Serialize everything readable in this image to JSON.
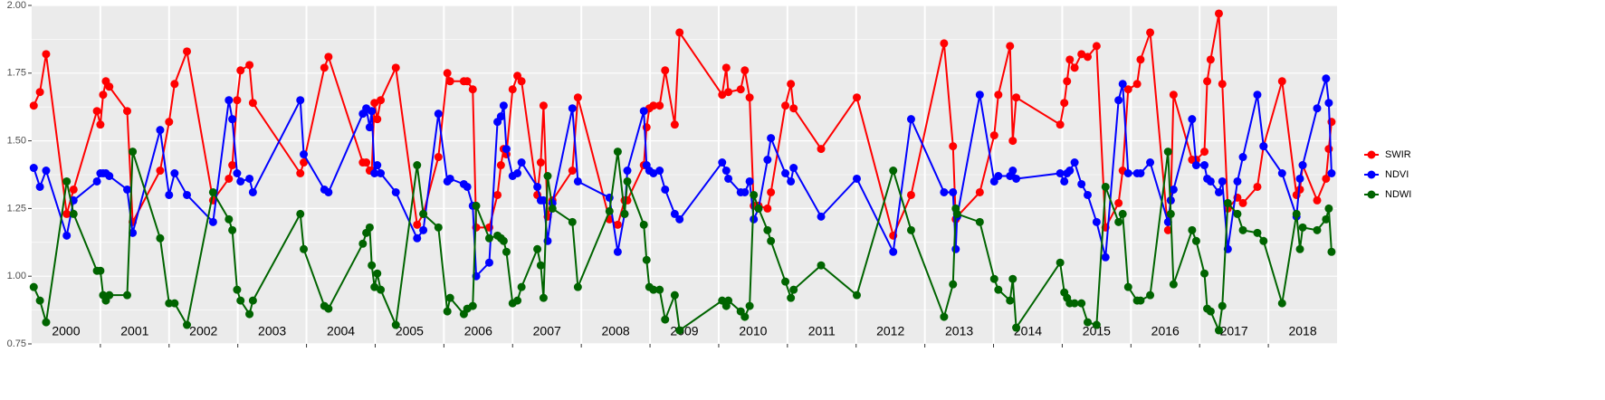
{
  "chart_data": {
    "type": "line",
    "x": [
      2000.03,
      2000.12,
      2000.21,
      2000.51,
      2000.61,
      2000.95,
      2001.0,
      2001.04,
      2001.08,
      2001.13,
      2001.39,
      2001.47,
      2001.87,
      2002.0,
      2002.08,
      2002.26,
      2002.64,
      2002.87,
      2002.92,
      2002.99,
      2003.04,
      2003.17,
      2003.22,
      2003.91,
      2003.96,
      2004.26,
      2004.32,
      2004.82,
      2004.87,
      2004.92,
      2004.95,
      2004.99,
      2005.03,
      2005.08,
      2005.3,
      2005.61,
      2005.7,
      2005.92,
      2006.05,
      2006.09,
      2006.29,
      2006.34,
      2006.42,
      2006.47,
      2006.66,
      2006.78,
      2006.83,
      2006.87,
      2006.91,
      2007.0,
      2007.07,
      2007.13,
      2007.36,
      2007.41,
      2007.45,
      2007.51,
      2007.58,
      2007.87,
      2007.95,
      2008.41,
      2008.53,
      2008.63,
      2008.67,
      2008.91,
      2008.95,
      2008.99,
      2009.05,
      2009.14,
      2009.22,
      2009.36,
      2009.43,
      2010.05,
      2010.11,
      2010.14,
      2010.32,
      2010.38,
      2010.45,
      2010.51,
      2010.58,
      2010.71,
      2010.76,
      2010.97,
      2011.05,
      2011.09,
      2011.49,
      2012.01,
      2012.54,
      2012.8,
      2013.28,
      2013.41,
      2013.45,
      2013.47,
      2013.8,
      2014.01,
      2014.07,
      2014.24,
      2014.28,
      2014.33,
      2014.97,
      2015.03,
      2015.07,
      2015.11,
      2015.18,
      2015.28,
      2015.37,
      2015.5,
      2015.63,
      2015.82,
      2015.88,
      2015.96,
      2016.09,
      2016.14,
      2016.28,
      2016.54,
      2016.58,
      2016.62,
      2016.89,
      2016.95,
      2017.07,
      2017.11,
      2017.16,
      2017.28,
      2017.33,
      2017.41,
      2017.55,
      2017.63,
      2017.84,
      2017.93,
      2018.2,
      2018.41,
      2018.46,
      2018.5,
      2018.71,
      2018.84,
      2018.88,
      2018.92
    ],
    "series": [
      {
        "name": "SWIR",
        "color": "#ff0000",
        "values": [
          1.63,
          1.68,
          1.82,
          1.23,
          1.32,
          1.61,
          1.56,
          1.67,
          1.72,
          1.7,
          1.61,
          1.2,
          1.39,
          1.57,
          1.71,
          1.83,
          1.28,
          1.36,
          1.41,
          1.65,
          1.76,
          1.78,
          1.64,
          1.38,
          1.42,
          1.77,
          1.81,
          1.42,
          1.42,
          1.39,
          1.39,
          1.64,
          1.58,
          1.65,
          1.77,
          1.19,
          1.23,
          1.44,
          1.75,
          1.72,
          1.72,
          1.72,
          1.69,
          1.18,
          1.18,
          1.3,
          1.41,
          1.47,
          1.45,
          1.69,
          1.74,
          1.72,
          1.3,
          1.42,
          1.63,
          1.22,
          1.28,
          1.39,
          1.66,
          1.21,
          1.19,
          1.28,
          1.28,
          1.41,
          1.55,
          1.62,
          1.63,
          1.63,
          1.76,
          1.56,
          1.9,
          1.67,
          1.77,
          1.68,
          1.69,
          1.76,
          1.66,
          1.26,
          1.26,
          1.25,
          1.31,
          1.63,
          1.71,
          1.62,
          1.47,
          1.66,
          1.15,
          1.3,
          1.86,
          1.48,
          1.21,
          1.22,
          1.31,
          1.52,
          1.67,
          1.85,
          1.5,
          1.66,
          1.56,
          1.64,
          1.72,
          1.8,
          1.77,
          1.82,
          1.81,
          1.85,
          1.18,
          1.27,
          1.39,
          1.69,
          1.71,
          1.8,
          1.9,
          1.17,
          1.28,
          1.67,
          1.43,
          1.43,
          1.46,
          1.72,
          1.8,
          1.97,
          1.71,
          1.25,
          1.29,
          1.27,
          1.33,
          1.48,
          1.72,
          1.3,
          1.32,
          1.41,
          1.28,
          1.36,
          1.47,
          1.57
        ]
      },
      {
        "name": "NDVI",
        "color": "#0000ff",
        "values": [
          1.4,
          1.33,
          1.39,
          1.15,
          1.28,
          1.35,
          1.38,
          1.38,
          1.38,
          1.37,
          1.32,
          1.16,
          1.54,
          1.3,
          1.38,
          1.3,
          1.2,
          1.65,
          1.58,
          1.38,
          1.35,
          1.36,
          1.31,
          1.65,
          1.45,
          1.32,
          1.31,
          1.6,
          1.62,
          1.55,
          1.61,
          1.38,
          1.41,
          1.38,
          1.31,
          1.14,
          1.17,
          1.6,
          1.35,
          1.36,
          1.34,
          1.33,
          1.26,
          1.0,
          1.05,
          1.57,
          1.59,
          1.63,
          1.47,
          1.37,
          1.38,
          1.42,
          1.33,
          1.28,
          1.28,
          1.13,
          1.27,
          1.62,
          1.35,
          1.29,
          1.09,
          1.23,
          1.39,
          1.61,
          1.41,
          1.39,
          1.38,
          1.39,
          1.32,
          1.23,
          1.21,
          1.42,
          1.39,
          1.36,
          1.31,
          1.31,
          1.35,
          1.21,
          1.25,
          1.43,
          1.51,
          1.38,
          1.35,
          1.4,
          1.22,
          1.36,
          1.09,
          1.58,
          1.31,
          1.31,
          1.1,
          1.22,
          1.67,
          1.35,
          1.37,
          1.37,
          1.39,
          1.36,
          1.38,
          1.35,
          1.38,
          1.39,
          1.42,
          1.34,
          1.3,
          1.2,
          1.07,
          1.65,
          1.71,
          1.38,
          1.38,
          1.38,
          1.42,
          1.2,
          1.28,
          1.32,
          1.58,
          1.41,
          1.41,
          1.36,
          1.35,
          1.31,
          1.35,
          1.1,
          1.35,
          1.44,
          1.67,
          1.48,
          1.38,
          1.22,
          1.36,
          1.41,
          1.62,
          1.73,
          1.64,
          1.38
        ]
      },
      {
        "name": "NDWI",
        "color": "#006400",
        "values": [
          0.96,
          0.91,
          0.83,
          1.35,
          1.23,
          1.02,
          1.02,
          0.93,
          0.91,
          0.93,
          0.93,
          1.46,
          1.14,
          0.9,
          0.9,
          0.82,
          1.31,
          1.21,
          1.17,
          0.95,
          0.91,
          0.86,
          0.91,
          1.23,
          1.1,
          0.89,
          0.88,
          1.12,
          1.16,
          1.18,
          1.04,
          0.96,
          1.01,
          0.95,
          0.82,
          1.41,
          1.23,
          1.18,
          0.87,
          0.92,
          0.86,
          0.88,
          0.89,
          1.26,
          1.14,
          1.15,
          1.14,
          1.13,
          1.09,
          0.9,
          0.91,
          0.96,
          1.1,
          1.04,
          0.92,
          1.37,
          1.25,
          1.2,
          0.96,
          1.24,
          1.46,
          1.23,
          1.35,
          1.19,
          1.06,
          0.96,
          0.95,
          0.95,
          0.84,
          0.93,
          0.8,
          0.91,
          0.89,
          0.91,
          0.87,
          0.85,
          0.89,
          1.3,
          1.25,
          1.17,
          1.13,
          0.98,
          0.92,
          0.95,
          1.04,
          0.93,
          1.39,
          1.17,
          0.85,
          0.97,
          1.25,
          1.23,
          1.2,
          0.99,
          0.95,
          0.91,
          0.99,
          0.81,
          1.05,
          0.94,
          0.92,
          0.9,
          0.9,
          0.9,
          0.83,
          0.82,
          1.33,
          1.2,
          1.23,
          0.96,
          0.91,
          0.91,
          0.93,
          1.46,
          1.23,
          0.97,
          1.17,
          1.13,
          1.01,
          0.88,
          0.87,
          0.8,
          0.89,
          1.27,
          1.23,
          1.17,
          1.16,
          1.13,
          0.9,
          1.23,
          1.1,
          1.18,
          1.17,
          1.21,
          1.25,
          1.09
        ]
      }
    ],
    "xlim": [
      2000,
      2019
    ],
    "xticks": [
      {
        "value": 2000.5,
        "label": "2000"
      },
      {
        "value": 2001.5,
        "label": "2001"
      },
      {
        "value": 2002.5,
        "label": "2002"
      },
      {
        "value": 2003.5,
        "label": "2003"
      },
      {
        "value": 2004.5,
        "label": "2004"
      },
      {
        "value": 2005.5,
        "label": "2005"
      },
      {
        "value": 2006.5,
        "label": "2006"
      },
      {
        "value": 2007.5,
        "label": "2007"
      },
      {
        "value": 2008.5,
        "label": "2008"
      },
      {
        "value": 2009.5,
        "label": "2009"
      },
      {
        "value": 2010.5,
        "label": "2010"
      },
      {
        "value": 2011.5,
        "label": "2011"
      },
      {
        "value": 2012.5,
        "label": "2012"
      },
      {
        "value": 2013.5,
        "label": "2013"
      },
      {
        "value": 2014.5,
        "label": "2014"
      },
      {
        "value": 2015.5,
        "label": "2015"
      },
      {
        "value": 2016.5,
        "label": "2016"
      },
      {
        "value": 2017.5,
        "label": "2017"
      },
      {
        "value": 2018.5,
        "label": "2018"
      }
    ],
    "ylim": [
      0.75,
      2.0
    ],
    "yticks": [
      0.75,
      {
        "value": 1.0,
        "label": "1.00"
      },
      1.25,
      {
        "value": 1.5,
        "label": "1.50"
      },
      1.75,
      {
        "value": 2.0,
        "label": "2.00"
      }
    ],
    "grid": true,
    "legend": "right"
  }
}
